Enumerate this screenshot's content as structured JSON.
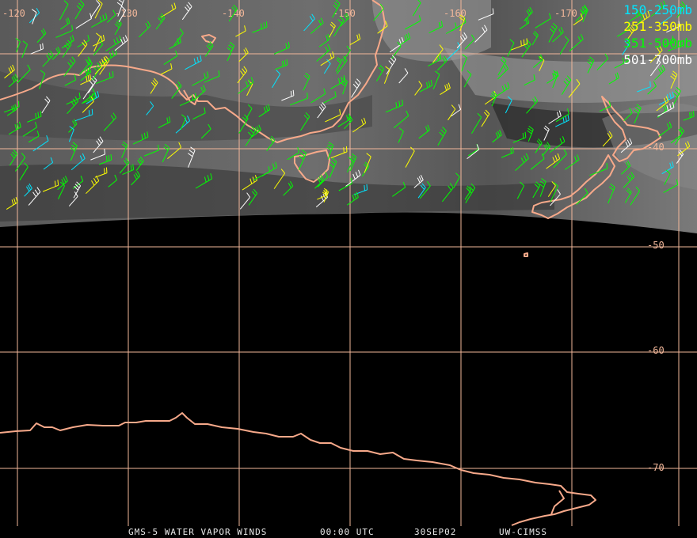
{
  "footer": {
    "product": "GMS-5 WATER VAPOR WINDS",
    "time": "00:00 UTC",
    "date": "30SEP02",
    "source": "UW-CIMSS"
  },
  "legend": [
    {
      "label": "150-250mb",
      "color": "#00e5ff"
    },
    {
      "label": "251-350mb",
      "color": "#ffff00"
    },
    {
      "label": "351-500mb",
      "color": "#00ff00"
    },
    {
      "label": "501-700mb",
      "color": "#ffffff"
    }
  ],
  "grid": {
    "longitude_labels": [
      "-120",
      "-130",
      "-140",
      "-150",
      "-160",
      "-170"
    ],
    "latitude_labels": [
      "-40",
      "-50",
      "-60",
      "-70"
    ],
    "line_color": "#f2b79a"
  },
  "coastline_color": "#f7a98a"
}
